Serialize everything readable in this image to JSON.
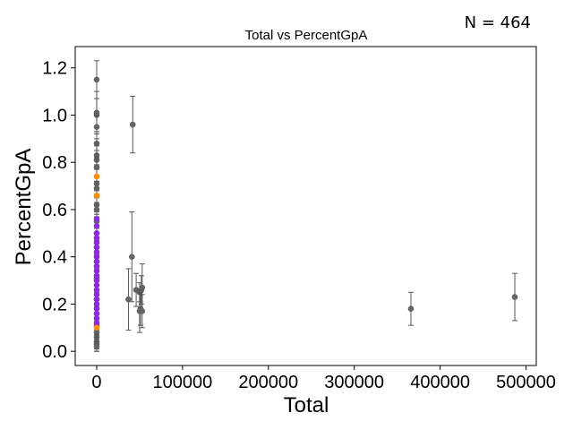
{
  "chart_data": {
    "type": "scatter",
    "title": "Total vs PercentGpA",
    "xlabel": "Total",
    "ylabel": "PercentGpA",
    "annotation": "N = 464",
    "xlim": [
      -25000,
      512000
    ],
    "ylim": [
      -0.06,
      1.29
    ],
    "xticks": [
      0,
      100000,
      200000,
      300000,
      400000,
      500000
    ],
    "xtick_labels": [
      "0",
      "100000",
      "200000",
      "300000",
      "400000",
      "500000"
    ],
    "yticks": [
      0.0,
      0.2,
      0.4,
      0.6,
      0.8,
      1.0,
      1.2
    ],
    "ytick_labels": [
      "0.0",
      "0.2",
      "0.4",
      "0.6",
      "0.8",
      "1.0",
      "1.2"
    ],
    "grid": false,
    "colors": {
      "gray": "#636363",
      "purple": "#8a2be2",
      "orange": "#ff8c00",
      "errorbar": "#555555"
    },
    "series": [
      {
        "color": "gray",
        "errorbars": true,
        "points": [
          {
            "x": 0,
            "y": 1.15,
            "err": 0.08
          },
          {
            "x": 0,
            "y": 1.01,
            "err": 0.09
          },
          {
            "x": 0,
            "y": 1.0,
            "err": 0.07
          },
          {
            "x": 0,
            "y": 0.95,
            "err": 0.05
          },
          {
            "x": 0,
            "y": 0.88,
            "err": 0.05
          },
          {
            "x": 0,
            "y": 0.83,
            "err": 0.04
          },
          {
            "x": 0,
            "y": 0.81,
            "err": 0.04
          },
          {
            "x": 0,
            "y": 0.78,
            "err": 0.04
          },
          {
            "x": 0,
            "y": 0.71,
            "err": 0.03
          },
          {
            "x": 0,
            "y": 0.69,
            "err": 0.03
          },
          {
            "x": 0,
            "y": 0.62,
            "err": 0.03
          },
          {
            "x": 0,
            "y": 0.6,
            "err": 0.03
          },
          {
            "x": 0,
            "y": 0.55,
            "err": 0.03
          },
          {
            "x": 0,
            "y": 0.5,
            "err": 0.03
          },
          {
            "x": 0,
            "y": 0.44,
            "err": 0.03
          },
          {
            "x": 0,
            "y": 0.38,
            "err": 0.03
          },
          {
            "x": 0,
            "y": 0.31,
            "err": 0.03
          },
          {
            "x": 0,
            "y": 0.22,
            "err": 0.03
          },
          {
            "x": 0,
            "y": 0.16,
            "err": 0.03
          },
          {
            "x": 0,
            "y": 0.11,
            "err": 0.03
          },
          {
            "x": 0,
            "y": 0.08,
            "err": 0.03
          },
          {
            "x": 0,
            "y": 0.06,
            "err": 0.03
          },
          {
            "x": 0,
            "y": 0.04,
            "err": 0.03
          },
          {
            "x": 0,
            "y": 0.03,
            "err": 0.03
          },
          {
            "x": 0,
            "y": 0.02,
            "err": 0.02
          },
          {
            "x": 42000,
            "y": 0.96,
            "err": 0.12
          },
          {
            "x": 41000,
            "y": 0.4,
            "err": 0.19
          },
          {
            "x": 37000,
            "y": 0.22,
            "err": 0.13
          },
          {
            "x": 46000,
            "y": 0.26,
            "err": 0.07
          },
          {
            "x": 50000,
            "y": 0.25,
            "err": 0.04
          },
          {
            "x": 52000,
            "y": 0.26,
            "err": 0.06
          },
          {
            "x": 53000,
            "y": 0.27,
            "err": 0.1
          },
          {
            "x": 51000,
            "y": 0.18,
            "err": 0.07
          },
          {
            "x": 50000,
            "y": 0.17,
            "err": 0.09
          },
          {
            "x": 53000,
            "y": 0.17,
            "err": 0.07
          },
          {
            "x": 366000,
            "y": 0.18,
            "err": 0.07
          },
          {
            "x": 487000,
            "y": 0.23,
            "err": 0.1
          }
        ]
      },
      {
        "color": "purple",
        "errorbars": false,
        "points": [
          {
            "x": 0,
            "y": 0.56
          },
          {
            "x": 0,
            "y": 0.53
          },
          {
            "x": 0,
            "y": 0.5
          },
          {
            "x": 0,
            "y": 0.48
          },
          {
            "x": 0,
            "y": 0.46
          },
          {
            "x": 0,
            "y": 0.44
          },
          {
            "x": 0,
            "y": 0.42
          },
          {
            "x": 0,
            "y": 0.4
          },
          {
            "x": 0,
            "y": 0.38
          },
          {
            "x": 0,
            "y": 0.36
          },
          {
            "x": 0,
            "y": 0.34
          },
          {
            "x": 0,
            "y": 0.32
          },
          {
            "x": 0,
            "y": 0.3
          },
          {
            "x": 0,
            "y": 0.28
          },
          {
            "x": 0,
            "y": 0.26
          },
          {
            "x": 0,
            "y": 0.24
          },
          {
            "x": 0,
            "y": 0.22
          },
          {
            "x": 0,
            "y": 0.2
          },
          {
            "x": 0,
            "y": 0.18
          },
          {
            "x": 0,
            "y": 0.16
          },
          {
            "x": 0,
            "y": 0.14
          },
          {
            "x": 0,
            "y": 0.12
          }
        ]
      },
      {
        "color": "orange",
        "errorbars": false,
        "points": [
          {
            "x": 0,
            "y": 0.74
          },
          {
            "x": 0,
            "y": 0.66
          },
          {
            "x": 0,
            "y": 0.1
          }
        ]
      }
    ]
  }
}
